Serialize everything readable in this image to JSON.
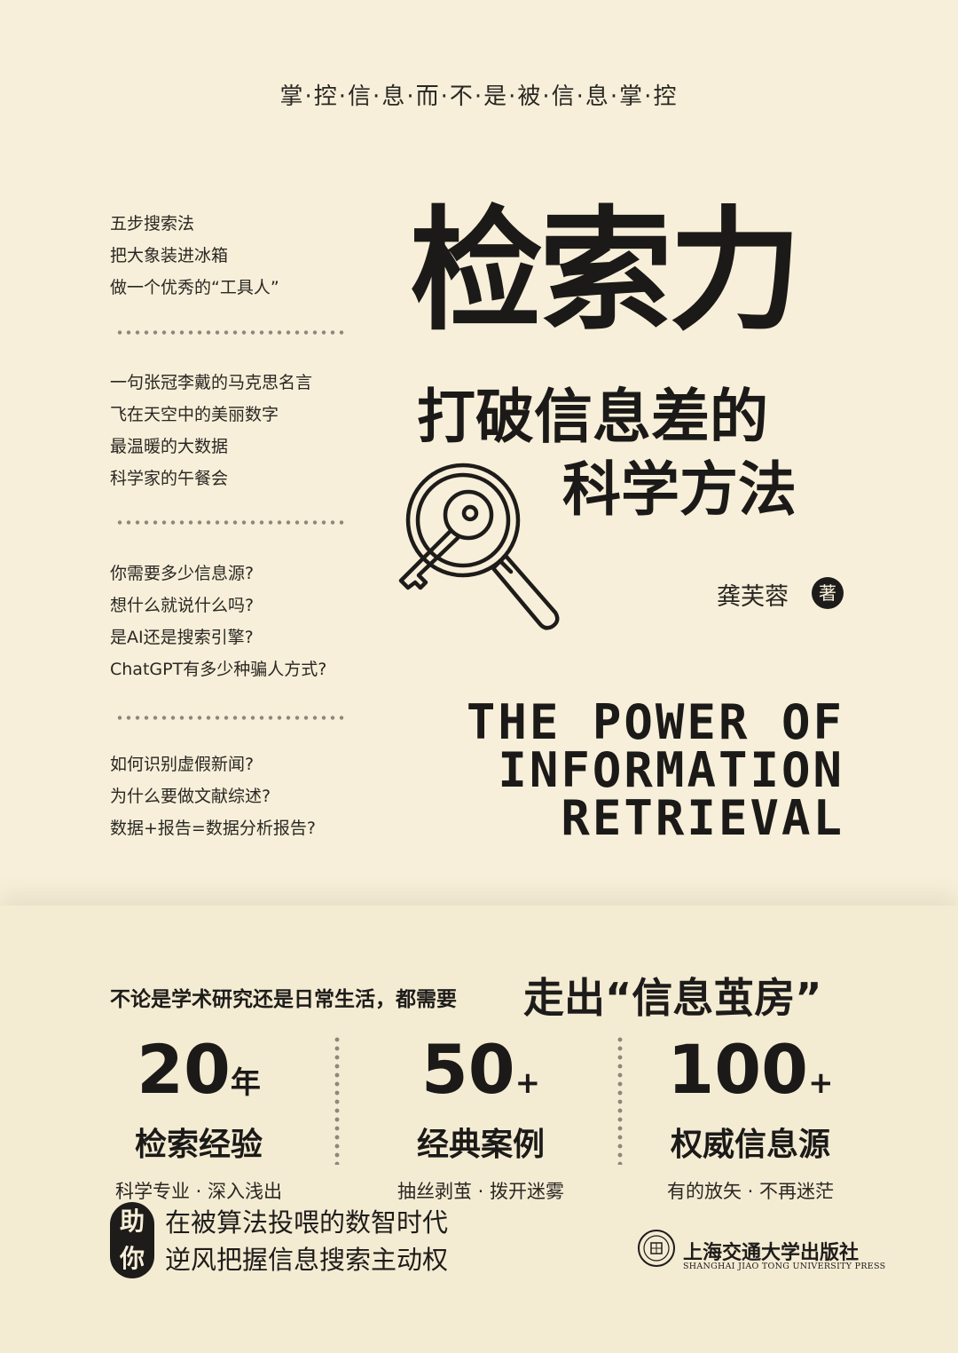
{
  "tagline": "掌·控·信·息·而·不·是·被·信·息·掌·控",
  "side_groups": [
    [
      "五步搜索法",
      "把大象装进冰箱",
      "做一个优秀的“工具人”"
    ],
    [
      "一句张冠李戴的马克思名言",
      "飞在天空中的美丽数字",
      "最温暖的大数据",
      "科学家的午餐会"
    ],
    [
      "你需要多少信息源?",
      "想什么就说什么吗?",
      "是AI还是搜索引擎?",
      "ChatGPT有多少种骗人方式?"
    ],
    [
      "如何识别虚假新闻?",
      "为什么要做文献综述?",
      "数据+报告=数据分析报告?"
    ]
  ],
  "title": "检索力",
  "subtitle_line1": "打破信息差的",
  "subtitle_line2": "科学方法",
  "author": "龚芙蓉",
  "author_role": "著",
  "english_title": [
    "THE POWER OF",
    "INFORMATION",
    "RETRIEVAL"
  ],
  "slogan_pre": "不论是学术研究还是日常生活，都需要",
  "slogan_main": "走出“信息茧房”",
  "stats": [
    {
      "number": "20",
      "unit": "年",
      "name": "检索经验",
      "desc": "科学专业 · 深入浅出"
    },
    {
      "number": "50",
      "unit": "+",
      "name": "经典案例",
      "desc": "抽丝剥茧 · 拨开迷雾"
    },
    {
      "number": "100",
      "unit": "+",
      "name": "权威信息源",
      "desc": "有的放矢 · 不再迷茫"
    }
  ],
  "help_chars": [
    "助",
    "你"
  ],
  "help_lines": [
    "在被算法投喂的数智时代",
    "逆风把握信息搜索主动权"
  ],
  "publisher": {
    "name_cn": "上海交通大学出版社",
    "name_en": "SHANGHAI JIAO TONG UNIVERSITY PRESS"
  },
  "colors": {
    "background": "#f7efd9",
    "ink": "#1e1c1a"
  },
  "icons": [
    "magnifier-key-icon",
    "publisher-seal-icon"
  ]
}
